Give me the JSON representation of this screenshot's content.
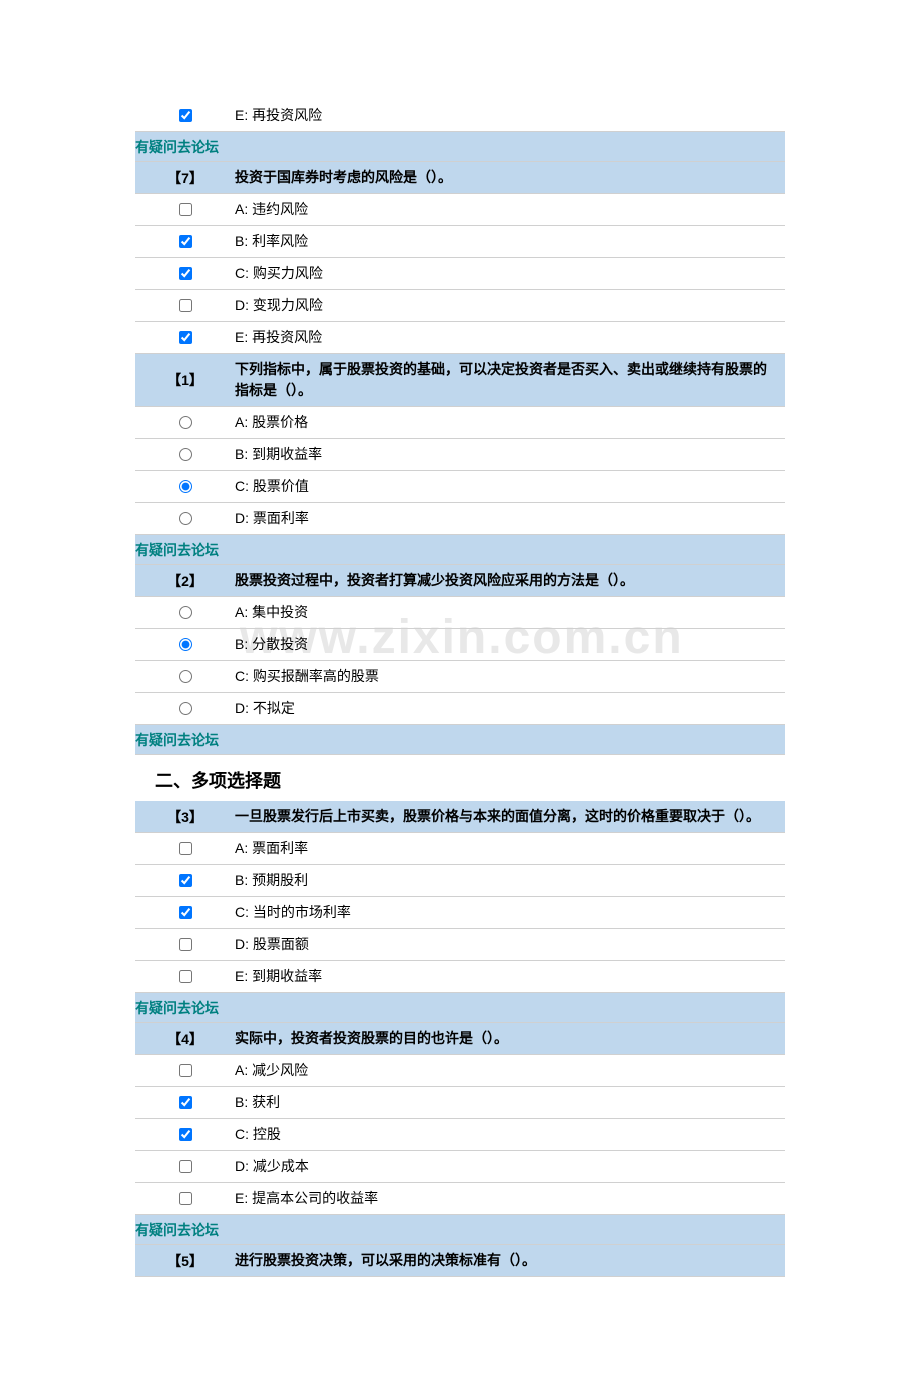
{
  "watermark": "www.zixin.com.cn",
  "forum_link_text": "有疑问去论坛",
  "section_title": "二、多项选择题",
  "first_option": {
    "label": "E: 再投资风险",
    "checked": true
  },
  "questions": [
    {
      "num": "【7】",
      "text": "投资于国库券时考虑的风险是（）。",
      "type": "checkbox",
      "forum_before": true,
      "options": [
        {
          "label": "A: 违约风险",
          "checked": false
        },
        {
          "label": "B: 利率风险",
          "checked": true
        },
        {
          "label": "C: 购买力风险",
          "checked": true
        },
        {
          "label": "D: 变现力风险",
          "checked": false
        },
        {
          "label": "E: 再投资风险",
          "checked": true
        }
      ]
    },
    {
      "num": "【1】",
      "text": "下列指标中，属于股票投资的基础，可以决定投资者是否买入、卖出或继续持有股票的指标是（）。",
      "type": "radio",
      "forum_before": false,
      "options": [
        {
          "label": "A: 股票价格",
          "checked": false
        },
        {
          "label": "B: 到期收益率",
          "checked": false
        },
        {
          "label": "C: 股票价值",
          "checked": true
        },
        {
          "label": "D: 票面利率",
          "checked": false
        }
      ]
    },
    {
      "num": "【2】",
      "text": "股票投资过程中，投资者打算减少投资风险应采用的方法是（）。",
      "type": "radio",
      "forum_before": true,
      "options": [
        {
          "label": "A: 集中投资",
          "checked": false
        },
        {
          "label": "B: 分散投资",
          "checked": true
        },
        {
          "label": "C: 购买报酬率高的股票",
          "checked": false
        },
        {
          "label": "D: 不拟定",
          "checked": false
        }
      ]
    },
    {
      "num": "【3】",
      "text": "一旦股票发行后上市买卖，股票价格与本来的面值分离，这时的价格重要取决于（）。",
      "type": "checkbox",
      "forum_before": true,
      "section_before": true,
      "options": [
        {
          "label": "A: 票面利率",
          "checked": false
        },
        {
          "label": "B: 预期股利",
          "checked": true
        },
        {
          "label": "C: 当时的市场利率",
          "checked": true
        },
        {
          "label": "D: 股票面额",
          "checked": false
        },
        {
          "label": "E: 到期收益率",
          "checked": false
        }
      ]
    },
    {
      "num": "【4】",
      "text": "实际中，投资者投资股票的目的也许是（）。",
      "type": "checkbox",
      "forum_before": true,
      "options": [
        {
          "label": "A: 减少风险",
          "checked": false
        },
        {
          "label": "B: 获利",
          "checked": true
        },
        {
          "label": "C: 控股",
          "checked": true
        },
        {
          "label": "D: 减少成本",
          "checked": false
        },
        {
          "label": "E: 提高本公司的收益率",
          "checked": false
        }
      ]
    },
    {
      "num": "【5】",
      "text": "进行股票投资决策，可以采用的决策标准有（）。",
      "type": "checkbox",
      "forum_before": true,
      "options": []
    }
  ]
}
